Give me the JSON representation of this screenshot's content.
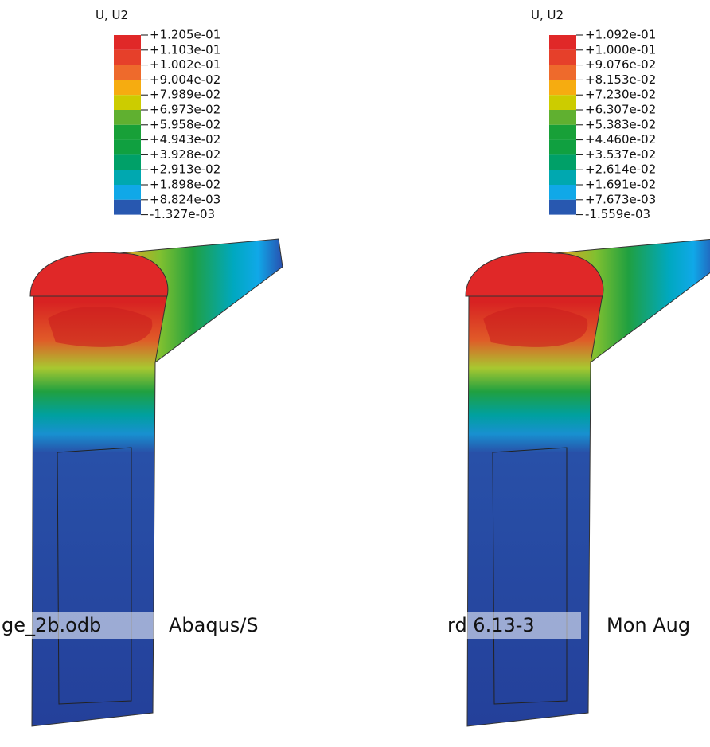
{
  "panels": [
    {
      "legend_title": "U, U2",
      "legend_labels": [
        "+1.205e-01",
        "+1.103e-01",
        "+1.002e-01",
        "+9.004e-02",
        "+7.989e-02",
        "+6.973e-02",
        "+5.958e-02",
        "+4.943e-02",
        "+3.928e-02",
        "+2.913e-02",
        "+1.898e-02",
        "+8.824e-03",
        "-1.327e-03"
      ]
    },
    {
      "legend_title": "U, U2",
      "legend_labels": [
        "+1.092e-01",
        "+1.000e-01",
        "+9.076e-02",
        "+8.153e-02",
        "+7.230e-02",
        "+6.307e-02",
        "+5.383e-02",
        "+4.460e-02",
        "+3.537e-02",
        "+2.614e-02",
        "+1.691e-02",
        "+7.673e-03",
        "-1.559e-03"
      ]
    }
  ],
  "legend_colors": [
    "#e02828",
    "#e6402a",
    "#ee6a2c",
    "#f6ac10",
    "#cccc00",
    "#60b030",
    "#18a038",
    "#10a040",
    "#00a068",
    "#00a8b0",
    "#10a8e8",
    "#2858b0",
    "#28409a"
  ],
  "footer": {
    "left": [
      "ge_2b.odb",
      "Abaqus/S"
    ],
    "right": [
      "rd 6.13-3",
      "Mon Aug"
    ]
  }
}
